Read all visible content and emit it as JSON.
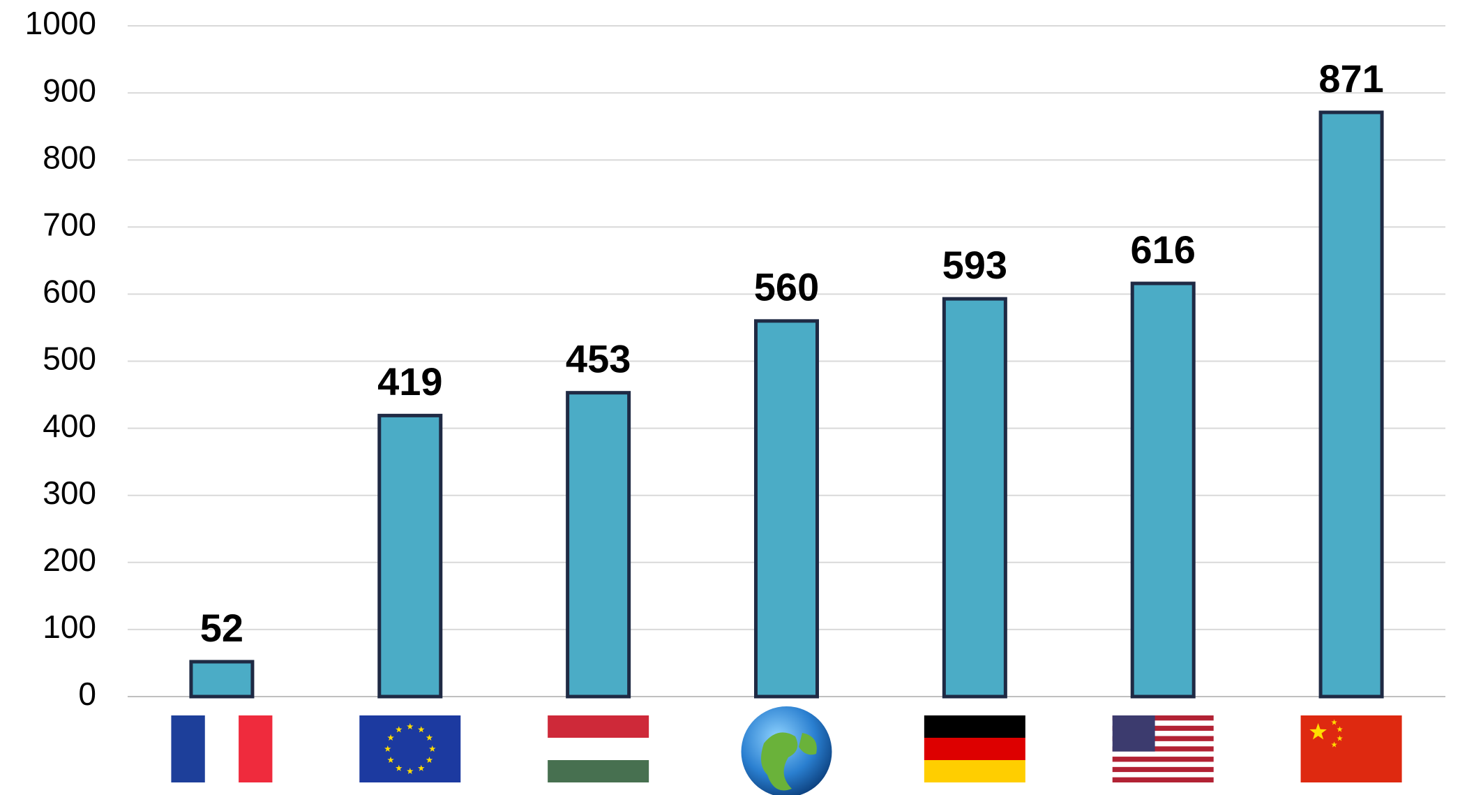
{
  "chart_data": {
    "type": "bar",
    "categories": [
      null,
      null,
      null,
      null,
      null,
      null,
      null
    ],
    "values": [
      52,
      419,
      453,
      560,
      593,
      616,
      871
    ],
    "color": "#4bacc6",
    "edgecolor": "#1f2a44",
    "ylim": [
      0,
      1000
    ],
    "yticks": [
      0,
      100,
      200,
      300,
      400,
      500,
      600,
      700,
      800,
      900,
      1000
    ],
    "grid": true
  }
}
